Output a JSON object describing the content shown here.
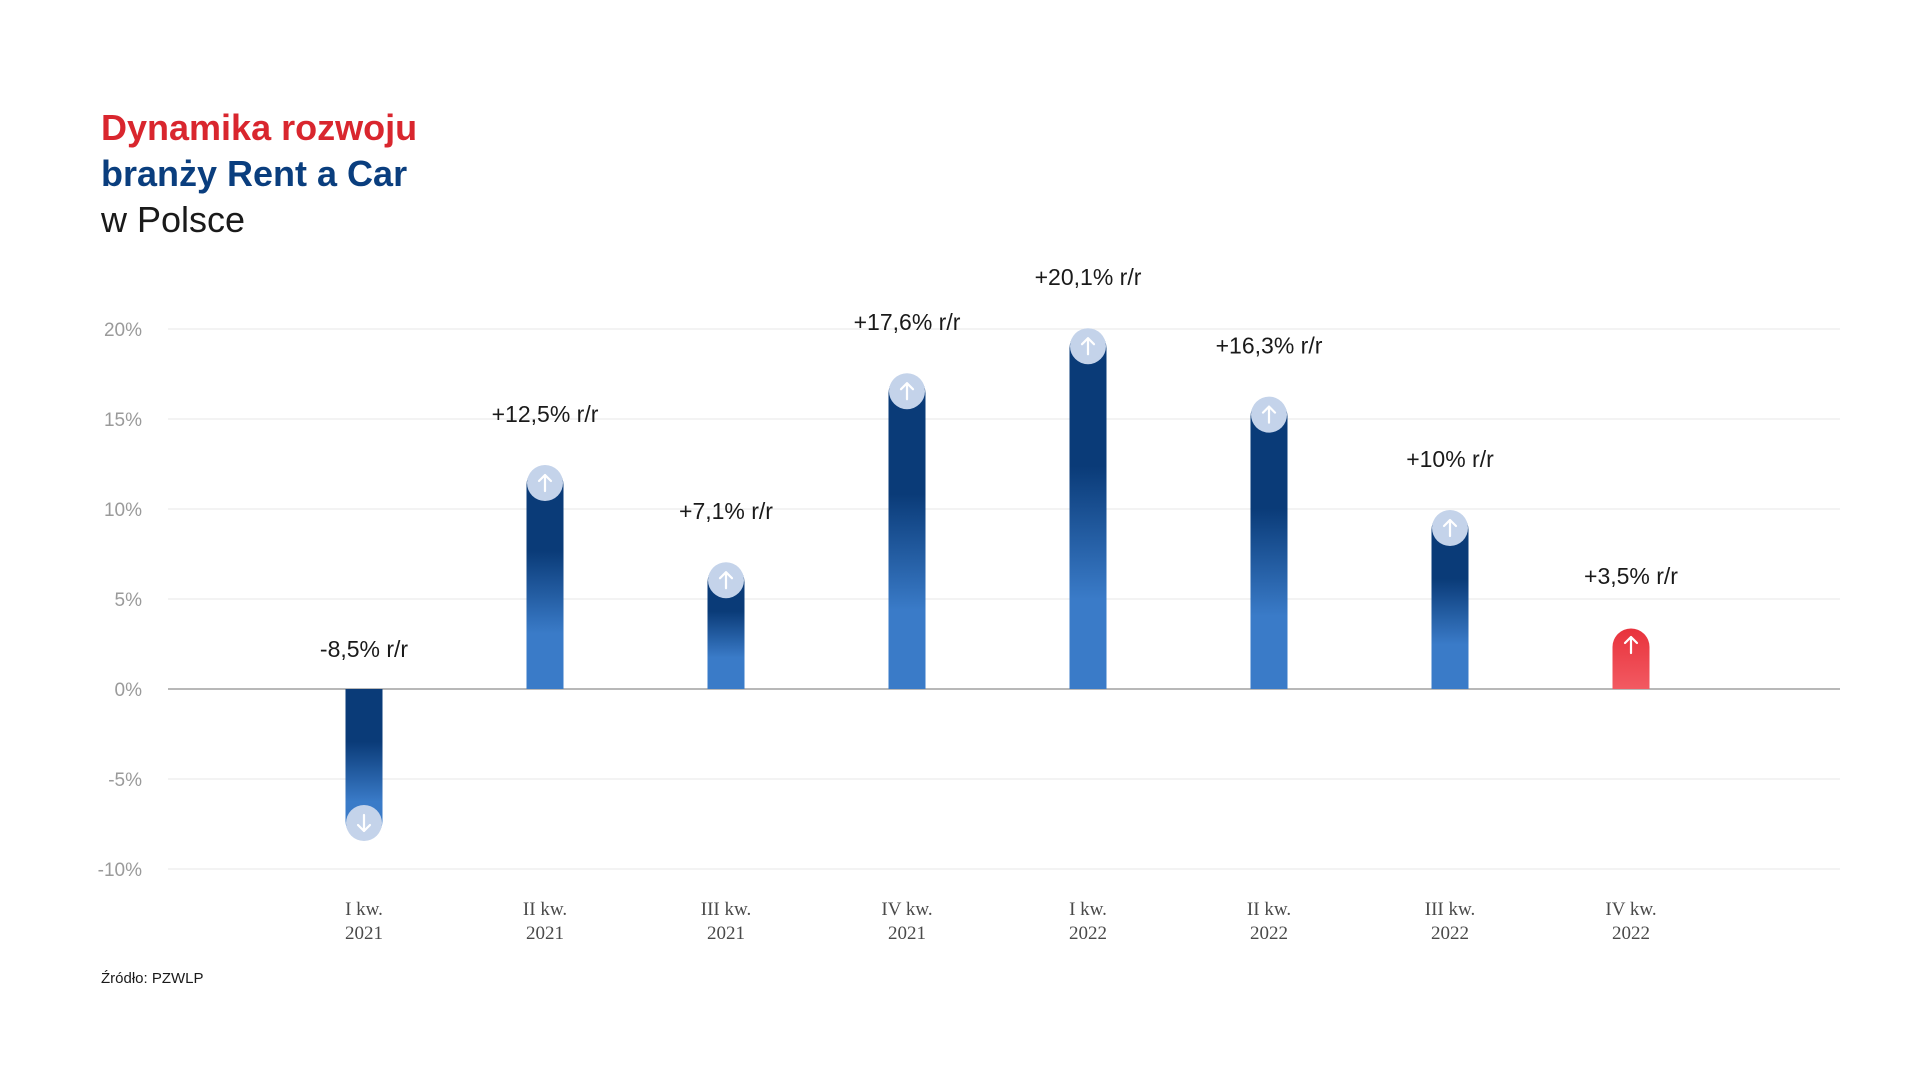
{
  "title": {
    "line1": "Dynamika rozwoju",
    "line2": "branży Rent a Car",
    "line3": "w Polsce"
  },
  "colors": {
    "title_red": "#d9262e",
    "title_blue": "#0a3e7e",
    "bar_dark": "#0a3b78",
    "bar_light": "#3a7bc8",
    "highlight_red": "#e8323c",
    "highlight_red_light": "#f25a62",
    "marker_fill": "#c4d3ea",
    "grid": "#ececec",
    "axis": "#b8b8b8"
  },
  "chart_data": {
    "type": "bar",
    "categories": [
      [
        "I kw.",
        "2021"
      ],
      [
        "II kw.",
        "2021"
      ],
      [
        "III kw.",
        "2021"
      ],
      [
        "IV kw.",
        "2021"
      ],
      [
        "I kw.",
        "2022"
      ],
      [
        "II kw.",
        "2022"
      ],
      [
        "III kw.",
        "2022"
      ],
      [
        "IV kw.",
        "2022"
      ]
    ],
    "values": [
      -8.5,
      12.5,
      7.1,
      17.6,
      20.1,
      16.3,
      10,
      3.5
    ],
    "value_labels": [
      "-8,5% r/r",
      "+12,5% r/r",
      "+7,1% r/r",
      "+17,6% r/r",
      "+20,1% r/r",
      "+16,3% r/r",
      "+10% r/r",
      "+3,5% r/r"
    ],
    "highlight_index": 7,
    "ylim": [
      -10,
      20
    ],
    "yticks": [
      20,
      15,
      10,
      5,
      0,
      -5,
      -10
    ],
    "ytick_labels": [
      "20%",
      "15%",
      "10%",
      "5%",
      "0%",
      "-5%",
      "-10%"
    ],
    "grid": true,
    "legend": "none"
  },
  "source_text": "Źródło: PZWLP"
}
